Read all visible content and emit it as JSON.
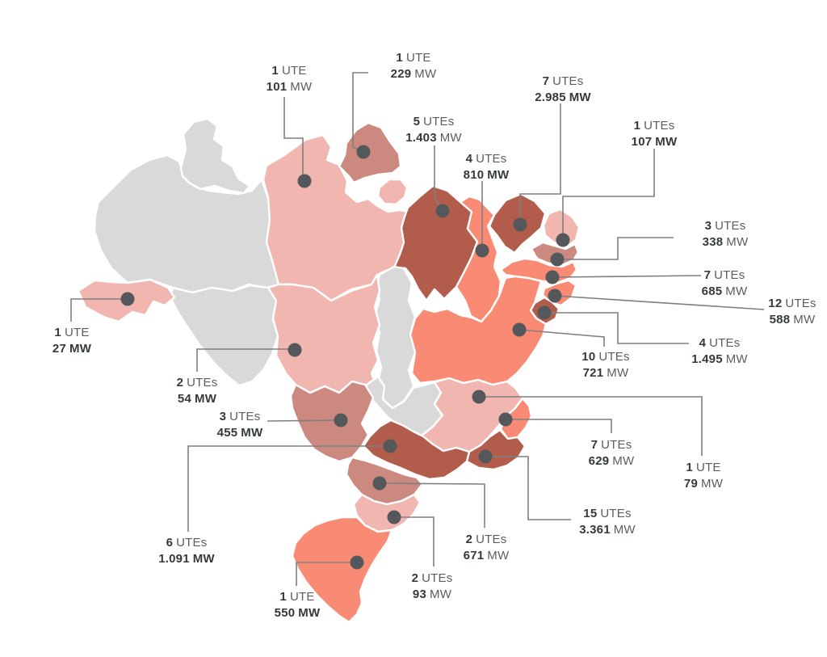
{
  "map": {
    "name": "brazil-states-utes-map"
  },
  "colors": {
    "background": "#ffffff",
    "state_none": "#d9d9d9",
    "state_low": "#f2b6b0",
    "state_mid": "#cc897f",
    "state_high": "#f98a73",
    "state_top": "#b25c4b",
    "marker_dot": "#54585b",
    "connector_line": "#7f7f7f",
    "text_strong": "#343a3c",
    "text_muted": "#595e60"
  },
  "callouts": [
    {
      "count": "1",
      "unit": "UTE",
      "value": "101",
      "value_unit": "MW",
      "value_unit_bold": false
    },
    {
      "count": "1",
      "unit": "UTE",
      "value": "229",
      "value_unit": "MW",
      "value_unit_bold": false
    },
    {
      "count": "5",
      "unit": "UTEs",
      "value": "1.403",
      "value_unit": "MW",
      "value_unit_bold": false
    },
    {
      "count": "4",
      "unit": "UTEs",
      "value": "810",
      "value_unit": "MW",
      "value_unit_bold": true
    },
    {
      "count": "7",
      "unit": "UTEs",
      "value": "2.985",
      "value_unit": "MW",
      "value_unit_bold": true
    },
    {
      "count": "1",
      "unit": "UTEs",
      "value": "107",
      "value_unit": "MW",
      "value_unit_bold": true
    },
    {
      "count": "3",
      "unit": "UTEs",
      "value": "338",
      "value_unit": "MW",
      "value_unit_bold": false
    },
    {
      "count": "7",
      "unit": "UTEs",
      "value": "685",
      "value_unit": "MW",
      "value_unit_bold": false
    },
    {
      "count": "12",
      "unit": "UTEs",
      "value": "588",
      "value_unit": "MW",
      "value_unit_bold": false
    },
    {
      "count": "4",
      "unit": "UTEs",
      "value": "1.495",
      "value_unit": "MW",
      "value_unit_bold": false
    },
    {
      "count": "10",
      "unit": "UTEs",
      "value": "721",
      "value_unit": "MW",
      "value_unit_bold": false
    },
    {
      "count": "1",
      "unit": "UTE",
      "value": "79",
      "value_unit": "MW",
      "value_unit_bold": false
    },
    {
      "count": "7",
      "unit": "UTEs",
      "value": "629",
      "value_unit": "MW",
      "value_unit_bold": false
    },
    {
      "count": "15",
      "unit": "UTEs",
      "value": "3.361",
      "value_unit": "MW",
      "value_unit_bold": false
    },
    {
      "count": "6",
      "unit": "UTEs",
      "value": "1.091",
      "value_unit": "MW",
      "value_unit_bold": true
    },
    {
      "count": "3",
      "unit": "UTEs",
      "value": "455",
      "value_unit": "MW",
      "value_unit_bold": true
    },
    {
      "count": "2",
      "unit": "UTEs",
      "value": "54",
      "value_unit": "MW",
      "value_unit_bold": true
    },
    {
      "count": "1",
      "unit": "UTE",
      "value": "27",
      "value_unit": "MW",
      "value_unit_bold": true
    },
    {
      "count": "2",
      "unit": "UTEs",
      "value": "671",
      "value_unit": "MW",
      "value_unit_bold": false
    },
    {
      "count": "2",
      "unit": "UTEs",
      "value": "93",
      "value_unit": "MW",
      "value_unit_bold": false
    },
    {
      "count": "1",
      "unit": "UTE",
      "value": "550",
      "value_unit": "MW",
      "value_unit_bold": true
    }
  ]
}
